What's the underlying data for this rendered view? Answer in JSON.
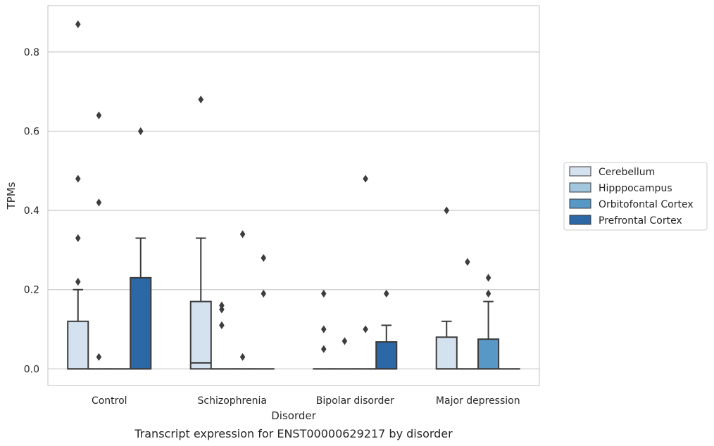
{
  "chart_data": {
    "type": "box",
    "title": "",
    "caption": "Transcript expression for ENST00000629217 by disorder",
    "xlabel": "Disorder",
    "ylabel": "TPMs",
    "ylim": [
      -0.042,
      0.917
    ],
    "yticks": [
      "0.0",
      "0.2",
      "0.4",
      "0.6",
      "0.8"
    ],
    "ytick_values": [
      0.0,
      0.2,
      0.4,
      0.6,
      0.8
    ],
    "grid": "horizontal",
    "legend_position": "right",
    "categories": [
      "Control",
      "Schizophrenia",
      "Bipolar disorder",
      "Major depression"
    ],
    "series": [
      {
        "name": "Cerebellum",
        "color": "#d4e2f0",
        "boxes": [
          {
            "q1": 0.0,
            "median": 0.0,
            "q3": 0.12,
            "whisker_low": 0.0,
            "whisker_high": 0.2,
            "outliers": [
              0.87,
              0.48,
              0.33,
              0.22
            ]
          },
          {
            "q1": 0.0,
            "median": 0.015,
            "q3": 0.17,
            "whisker_low": 0.0,
            "whisker_high": 0.33,
            "outliers": [
              0.68
            ]
          },
          {
            "q1": 0.0,
            "median": 0.0,
            "q3": 0.0,
            "whisker_low": 0.0,
            "whisker_high": 0.0,
            "outliers": [
              0.19,
              0.1,
              0.05
            ]
          },
          {
            "q1": 0.0,
            "median": 0.0,
            "q3": 0.08,
            "whisker_low": 0.0,
            "whisker_high": 0.12,
            "outliers": [
              0.4
            ]
          }
        ]
      },
      {
        "name": "Hipppocampus",
        "color": "#a3c6df",
        "boxes": [
          {
            "q1": 0.0,
            "median": 0.0,
            "q3": 0.0,
            "whisker_low": 0.0,
            "whisker_high": 0.0,
            "outliers": [
              0.64,
              0.42,
              0.03
            ]
          },
          {
            "q1": 0.0,
            "median": 0.0,
            "q3": 0.0,
            "whisker_low": 0.0,
            "whisker_high": 0.0,
            "outliers": [
              0.16,
              0.15,
              0.11
            ]
          },
          {
            "q1": 0.0,
            "median": 0.0,
            "q3": 0.0,
            "whisker_low": 0.0,
            "whisker_high": 0.0,
            "outliers": [
              0.07
            ]
          },
          {
            "q1": 0.0,
            "median": 0.0,
            "q3": 0.0,
            "whisker_low": 0.0,
            "whisker_high": 0.0,
            "outliers": [
              0.27
            ]
          }
        ]
      },
      {
        "name": "Orbitofontal Cortex",
        "color": "#5898c6",
        "boxes": [
          {
            "q1": 0.0,
            "median": 0.0,
            "q3": 0.0,
            "whisker_low": 0.0,
            "whisker_high": 0.0,
            "outliers": []
          },
          {
            "q1": 0.0,
            "median": 0.0,
            "q3": 0.0,
            "whisker_low": 0.0,
            "whisker_high": 0.0,
            "outliers": [
              0.34,
              0.03
            ]
          },
          {
            "q1": 0.0,
            "median": 0.0,
            "q3": 0.0,
            "whisker_low": 0.0,
            "whisker_high": 0.0,
            "outliers": [
              0.48,
              0.1
            ]
          },
          {
            "q1": 0.0,
            "median": 0.0,
            "q3": 0.075,
            "whisker_low": 0.0,
            "whisker_high": 0.17,
            "outliers": [
              0.23,
              0.19
            ]
          }
        ]
      },
      {
        "name": "Prefrontal Cortex",
        "color": "#2b68a5",
        "boxes": [
          {
            "q1": 0.0,
            "median": 0.0,
            "q3": 0.23,
            "whisker_low": 0.0,
            "whisker_high": 0.33,
            "outliers": [
              0.6
            ]
          },
          {
            "q1": 0.0,
            "median": 0.0,
            "q3": 0.0,
            "whisker_low": 0.0,
            "whisker_high": 0.0,
            "outliers": [
              0.28,
              0.19
            ]
          },
          {
            "q1": 0.0,
            "median": 0.0,
            "q3": 0.068,
            "whisker_low": 0.0,
            "whisker_high": 0.11,
            "outliers": [
              0.19
            ]
          },
          {
            "q1": 0.0,
            "median": 0.0,
            "q3": 0.0,
            "whisker_low": 0.0,
            "whisker_high": 0.0,
            "outliers": []
          }
        ]
      }
    ]
  }
}
